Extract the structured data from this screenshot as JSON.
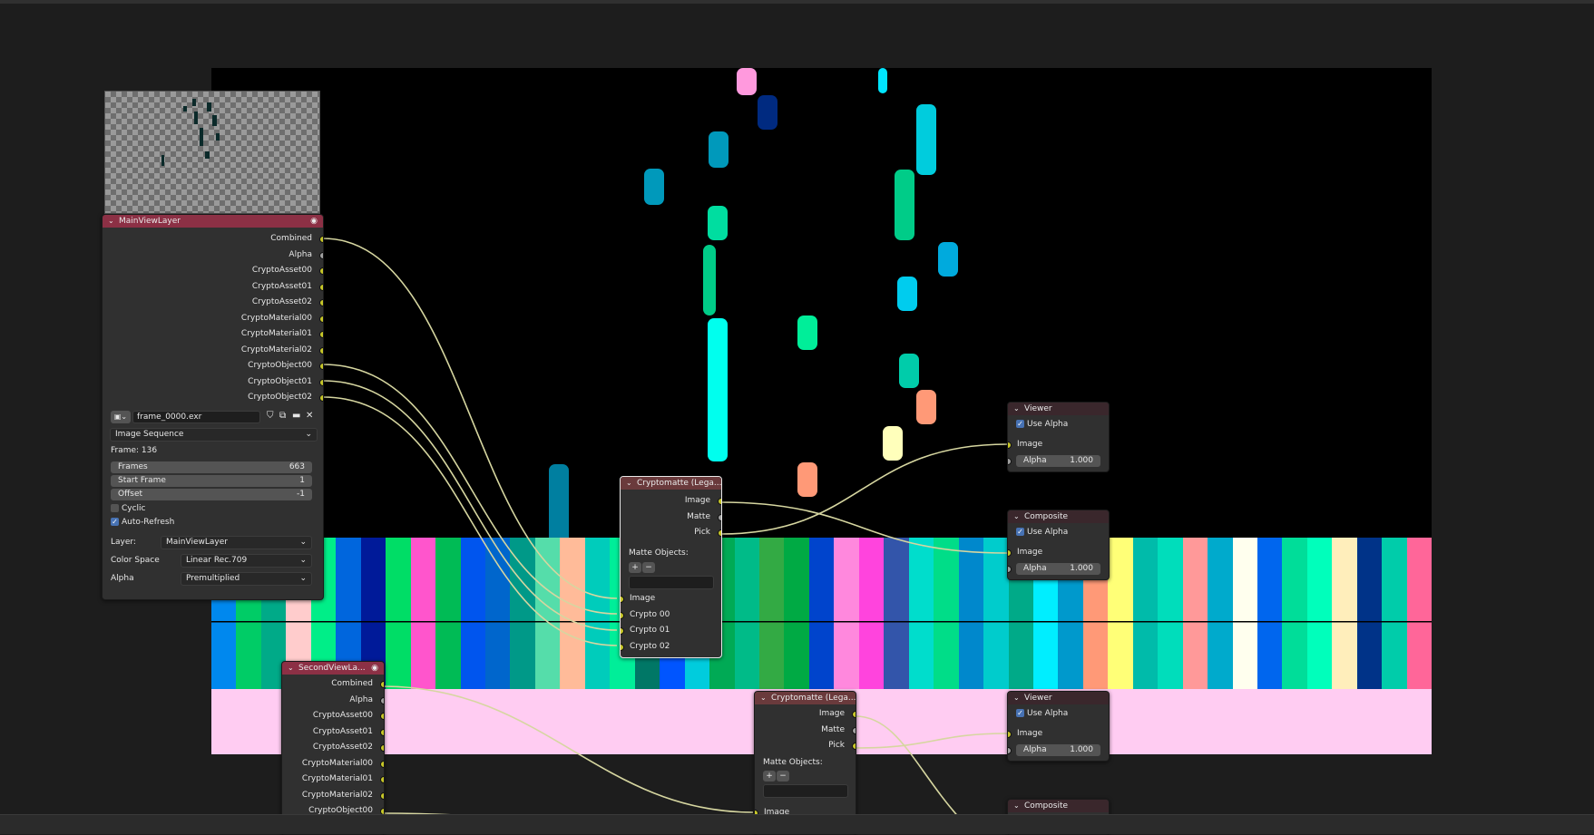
{
  "colors": {
    "render_layer_header": "#8c3045",
    "cryptomatte_header": "#6a3a3c",
    "output_header": "#3a272c",
    "socket_color": "#c7c729",
    "socket_gray": "#a1a1a1",
    "link_color": "#d6d6a0",
    "node_body": "#303030",
    "checkbox_on": "#4772b3",
    "pink_band": "#ffccf2"
  },
  "render_layer_node": {
    "title": "MainViewLayer",
    "header_icon": "eye-icon",
    "outputs": [
      "Combined",
      "Alpha",
      "CryptoAsset00",
      "CryptoAsset01",
      "CryptoAsset02",
      "CryptoMaterial00",
      "CryptoMaterial01",
      "CryptoMaterial02",
      "CryptoObject00",
      "CryptoObject01",
      "CryptoObject02"
    ],
    "image_file": "frame_0000.exr",
    "source_type": "Image Sequence",
    "frame_label": "Frame: 136",
    "frames_label": "Frames",
    "frames_value": "663",
    "start_label": "Start Frame",
    "start_value": "1",
    "offset_label": "Offset",
    "offset_value": "-1",
    "cyclic_label": "Cyclic",
    "cyclic": false,
    "autorefresh_label": "Auto-Refresh",
    "autorefresh": true,
    "layer_label": "Layer:",
    "layer_value": "MainViewLayer",
    "colorspace_label": "Color Space",
    "colorspace_value": "Linear Rec.709",
    "alpha_label": "Alpha",
    "alpha_value": "Premultiplied"
  },
  "render_layer_node_2": {
    "title": "SecondViewLa...",
    "header_icon": "eye-icon",
    "outputs": [
      "Combined",
      "Alpha",
      "CryptoAsset00",
      "CryptoAsset01",
      "CryptoAsset02",
      "CryptoMaterial00",
      "CryptoMaterial01",
      "CryptoMaterial02",
      "CryptoObject00"
    ]
  },
  "cryptomatte_node": {
    "title": "Cryptomatte (Lega...",
    "outputs": [
      "Image",
      "Matte",
      "Pick"
    ],
    "matte_label": "Matte Objects:",
    "add_label": "+",
    "remove_label": "−",
    "inputs": [
      "Image",
      "Crypto 00",
      "Crypto 01",
      "Crypto 02"
    ]
  },
  "cryptomatte_node_2": {
    "title": "Cryptomatte (Lega...",
    "outputs": [
      "Image",
      "Matte",
      "Pick"
    ],
    "matte_label": "Matte Objects:",
    "add_label": "+",
    "remove_label": "−",
    "inputs": [
      "Image"
    ]
  },
  "viewer_node": {
    "title": "Viewer",
    "use_alpha_label": "Use Alpha",
    "use_alpha": true,
    "image_label": "Image",
    "alpha_label": "Alpha",
    "alpha_value": "1.000"
  },
  "composite_node": {
    "title": "Composite",
    "use_alpha_label": "Use Alpha",
    "use_alpha": true,
    "image_label": "Image",
    "alpha_label": "Alpha",
    "alpha_value": "1.000"
  },
  "viewer_node_2": {
    "title": "Viewer",
    "use_alpha_label": "Use Alpha",
    "use_alpha": true,
    "image_label": "Image",
    "alpha_label": "Alpha",
    "alpha_value": "1.000"
  },
  "composite_node_2": {
    "title": "Composite"
  }
}
